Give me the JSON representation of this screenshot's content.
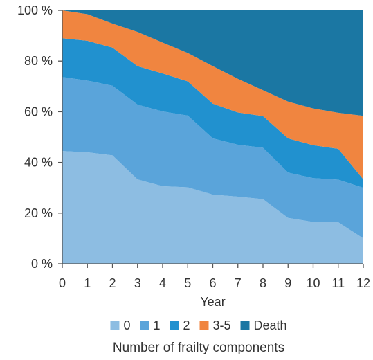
{
  "chart_data": {
    "type": "area",
    "stacked": true,
    "x": [
      0,
      1,
      2,
      3,
      4,
      5,
      6,
      7,
      8,
      9,
      10,
      11,
      12
    ],
    "xlabel": "Year",
    "ylabel": "",
    "ylim": [
      0,
      100
    ],
    "y_ticks": [
      "0 %",
      "20 %",
      "40 %",
      "60 %",
      "80 %",
      "100 %"
    ],
    "x_ticks": [
      "0",
      "1",
      "2",
      "3",
      "4",
      "5",
      "6",
      "7",
      "8",
      "9",
      "10",
      "11",
      "12"
    ],
    "grid": false,
    "legend_position": "bottom",
    "legend_title": "Number of frailty components",
    "series": [
      {
        "name": "0",
        "color": "#8dbde2",
        "values": [
          44.5,
          44,
          42.8,
          33.3,
          30.6,
          30.2,
          27.3,
          26.5,
          25.5,
          18.1,
          16.5,
          16.4,
          10.0
        ]
      },
      {
        "name": "1",
        "color": "#5aa4da",
        "values": [
          29.2,
          28.3,
          27.5,
          29.5,
          29.5,
          28.3,
          22.2,
          20.5,
          20.3,
          17.9,
          17.3,
          16.8,
          20.0
        ]
      },
      {
        "name": "2",
        "color": "#2191cf",
        "values": [
          15.3,
          15.7,
          15.0,
          15.2,
          15.0,
          13.5,
          13.7,
          12.7,
          12.5,
          13.5,
          13.0,
          12.2,
          3.3
        ]
      },
      {
        "name": "3-5",
        "color": "#f08540",
        "values": [
          11.0,
          10.5,
          9.5,
          13.5,
          12.2,
          11.2,
          14.8,
          13.3,
          10.2,
          14.5,
          14.5,
          14.2,
          25.1
        ]
      },
      {
        "name": "Death",
        "color": "#1b77a3",
        "values": [
          0,
          1.5,
          5.2,
          8.5,
          12.7,
          16.8,
          22.0,
          27.0,
          31.5,
          36.0,
          38.7,
          40.4,
          41.6
        ]
      }
    ]
  }
}
